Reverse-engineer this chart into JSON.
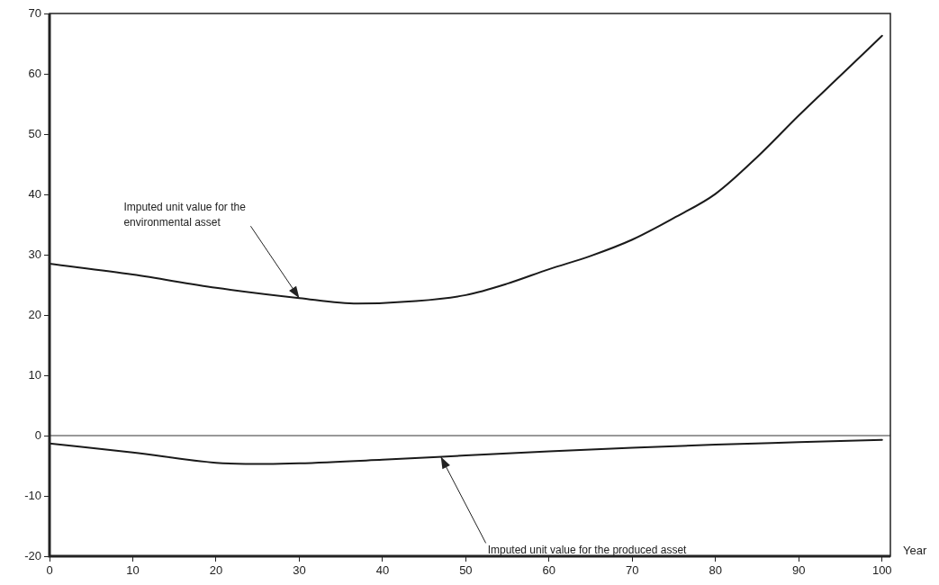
{
  "chart_data": {
    "type": "line",
    "xlabel": "Year",
    "series": [
      {
        "color": "#1a1a1a",
        "x": [
          0,
          10,
          20,
          30,
          37,
          44,
          50,
          55,
          60,
          65,
          70,
          75,
          80,
          85,
          90,
          95,
          100
        ],
        "values": [
          28.5,
          26.7,
          24.5,
          22.8,
          21.9,
          22.3,
          23.3,
          25.2,
          27.6,
          29.8,
          32.5,
          36.1,
          40.1,
          46.2,
          53.1,
          59.7,
          66.3
        ]
      },
      {
        "color": "#1a1a1a",
        "x": [
          0,
          10,
          20,
          26,
          30,
          40,
          50,
          60,
          70,
          80,
          90,
          100
        ],
        "values": [
          -1.3,
          -2.8,
          -4.5,
          -4.7,
          -4.6,
          -4.0,
          -3.3,
          -2.6,
          -2.0,
          -1.5,
          -1.1,
          -0.7
        ]
      }
    ],
    "xlim": [
      0,
      101
    ],
    "xticks": [
      0,
      10,
      20,
      30,
      40,
      50,
      60,
      70,
      80,
      90,
      100
    ],
    "ylim": [
      -20,
      70
    ],
    "yticks": [
      -20,
      -10,
      0,
      10,
      20,
      30,
      40,
      50,
      60,
      70
    ],
    "grid": false,
    "legend": false,
    "marker": "none",
    "line_style": "solid",
    "ref_lines": [
      {
        "axis": "y",
        "value": 0,
        "color": "#333333"
      }
    ],
    "annotations": [
      {
        "text": "Imputed unit value for the\nenvironmental asset",
        "x": 30,
        "y": 22.8
      },
      {
        "text": "Imputed unit value for the produced asset",
        "x": 47,
        "y": -3.5
      }
    ]
  }
}
